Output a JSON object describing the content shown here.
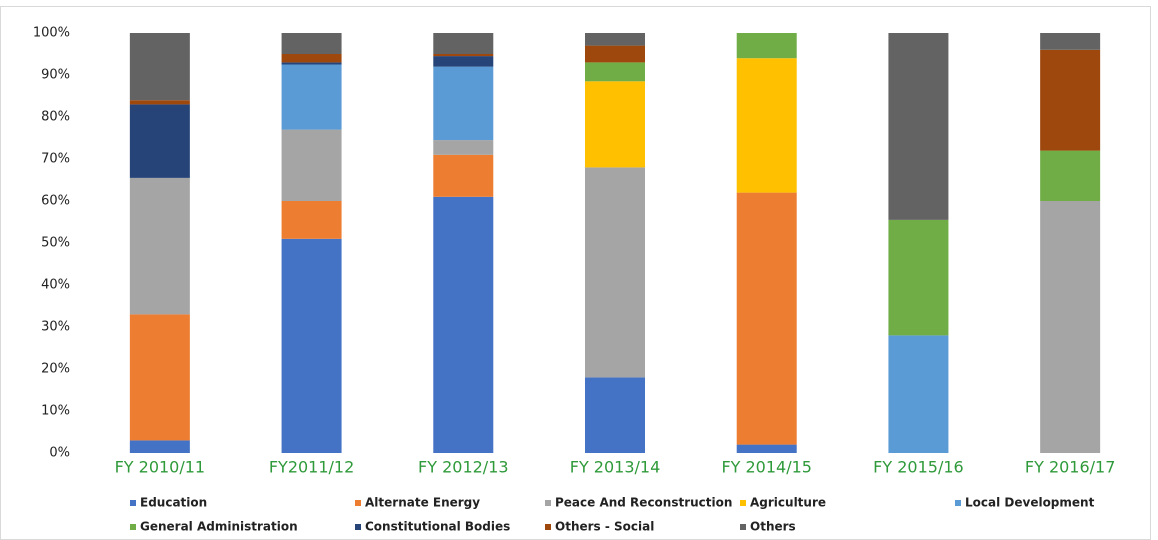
{
  "chart_data": {
    "type": "stacked_bar_percent",
    "categories": [
      "FY 2010/11",
      "FY2011/12",
      "FY 2012/13",
      "FY 2013/14",
      "FY 2014/15",
      "FY 2015/16",
      "FY 2016/17"
    ],
    "category_label_color": "#2f9a3a",
    "series": [
      {
        "name": "Education",
        "color": "#4472c4",
        "values": [
          3,
          51,
          61,
          18,
          2,
          0,
          0
        ]
      },
      {
        "name": "Alternate Energy",
        "color": "#ed7d31",
        "values": [
          30,
          9,
          10,
          0,
          60,
          0,
          0
        ]
      },
      {
        "name": "Peace And Reconstruction",
        "color": "#a5a5a5",
        "values": [
          32.5,
          17,
          3.5,
          50,
          0,
          0,
          60
        ]
      },
      {
        "name": "Agriculture",
        "color": "#ffc000",
        "values": [
          0,
          0,
          0,
          20.5,
          32,
          0,
          0
        ]
      },
      {
        "name": "Local Development",
        "color": "#5b9bd5",
        "values": [
          0,
          15.5,
          17.5,
          0,
          0,
          28,
          0
        ]
      },
      {
        "name": "General Administration",
        "color": "#70ad47",
        "values": [
          0,
          0,
          0,
          4.5,
          6,
          27.5,
          12
        ]
      },
      {
        "name": "Constitutional Bodies",
        "color": "#264478",
        "values": [
          17.5,
          0.5,
          2.5,
          0,
          0,
          0,
          0
        ]
      },
      {
        "name": "Others - Social",
        "color": "#9e480e",
        "values": [
          1,
          2,
          0.5,
          4,
          0,
          0,
          24
        ]
      },
      {
        "name": "Others",
        "color": "#636363",
        "values": [
          16,
          5,
          5,
          3,
          0,
          44.5,
          4
        ]
      }
    ],
    "ylim": [
      0,
      100
    ],
    "yticks": [
      {
        "value": 0,
        "label": "0%"
      },
      {
        "value": 10,
        "label": "10%"
      },
      {
        "value": 20,
        "label": "20%"
      },
      {
        "value": 30,
        "label": "30%"
      },
      {
        "value": 40,
        "label": "40%"
      },
      {
        "value": 50,
        "label": "50%"
      },
      {
        "value": 60,
        "label": "60%"
      },
      {
        "value": 70,
        "label": "70%"
      },
      {
        "value": 80,
        "label": "80%"
      },
      {
        "value": 90,
        "label": "90%"
      },
      {
        "value": 100,
        "label": "100%"
      }
    ],
    "grid": false,
    "legend": "bottom"
  }
}
